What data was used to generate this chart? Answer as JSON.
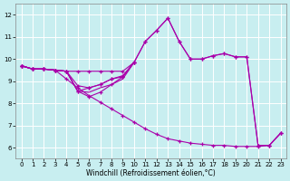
{
  "background_color": "#c8eef0",
  "line_color": "#aa00aa",
  "grid_color": "#ffffff",
  "xlabel": "Windchill (Refroidissement éolien,°C)",
  "xlim": [
    -0.5,
    23.5
  ],
  "ylim": [
    5.5,
    12.5
  ],
  "yticks": [
    6,
    7,
    8,
    9,
    10,
    11,
    12
  ],
  "xticks": [
    0,
    1,
    2,
    3,
    4,
    5,
    6,
    7,
    8,
    9,
    10,
    11,
    12,
    13,
    14,
    15,
    16,
    17,
    18,
    19,
    20,
    21,
    22,
    23
  ],
  "lines": [
    {
      "x": [
        0,
        1,
        2,
        3,
        4,
        5,
        6,
        7,
        8,
        9,
        10,
        11,
        12,
        13,
        14,
        15,
        16,
        17,
        18,
        19,
        20,
        21,
        22,
        23
      ],
      "y": [
        9.7,
        9.55,
        9.55,
        9.5,
        9.45,
        9.45,
        9.45,
        9.45,
        9.45,
        9.45,
        9.85,
        10.8,
        11.3,
        11.85,
        10.8,
        10.0,
        10.0,
        10.15,
        10.25,
        10.1,
        10.1,
        6.1,
        6.1,
        6.65
      ],
      "marker": true
    },
    {
      "x": [
        0,
        1,
        2,
        3,
        4,
        5,
        6,
        7,
        8,
        9,
        10,
        11,
        12,
        13,
        14,
        15,
        16,
        17,
        18,
        19,
        20,
        21,
        22,
        23
      ],
      "y": [
        9.7,
        9.55,
        9.55,
        9.5,
        9.45,
        8.55,
        8.3,
        8.5,
        8.85,
        9.2,
        9.85,
        10.8,
        11.3,
        11.85,
        10.8,
        10.0,
        10.0,
        10.15,
        10.25,
        10.1,
        10.1,
        6.1,
        6.1,
        6.65
      ],
      "marker": true
    },
    {
      "x": [
        0,
        1,
        2,
        3,
        4,
        5,
        6,
        7,
        8,
        9,
        10
      ],
      "y": [
        9.7,
        9.55,
        9.55,
        9.5,
        9.45,
        8.8,
        8.7,
        8.85,
        9.1,
        9.2,
        9.85
      ],
      "marker": true
    },
    {
      "x": [
        0,
        1,
        2,
        3,
        4,
        5,
        6,
        7,
        8,
        9,
        10
      ],
      "y": [
        9.7,
        9.55,
        9.55,
        9.5,
        9.45,
        8.55,
        8.7,
        8.85,
        9.1,
        9.25,
        9.85
      ],
      "marker": true
    },
    {
      "x": [
        0,
        1,
        2,
        3,
        4,
        5,
        6,
        7,
        8,
        9,
        10
      ],
      "y": [
        9.7,
        9.55,
        9.55,
        9.5,
        9.45,
        8.55,
        8.5,
        8.7,
        8.85,
        9.1,
        9.85
      ],
      "marker": false
    },
    {
      "x": [
        0,
        1,
        2,
        3,
        4,
        5,
        6,
        7,
        8,
        9,
        10,
        11,
        12,
        13,
        14,
        15,
        16,
        17,
        18,
        19,
        20,
        21,
        22,
        23
      ],
      "y": [
        9.7,
        9.55,
        9.55,
        9.5,
        9.1,
        8.7,
        8.35,
        8.05,
        7.75,
        7.45,
        7.15,
        6.85,
        6.6,
        6.4,
        6.3,
        6.2,
        6.15,
        6.1,
        6.1,
        6.05,
        6.05,
        6.05,
        6.1,
        6.65
      ],
      "marker": true
    }
  ]
}
